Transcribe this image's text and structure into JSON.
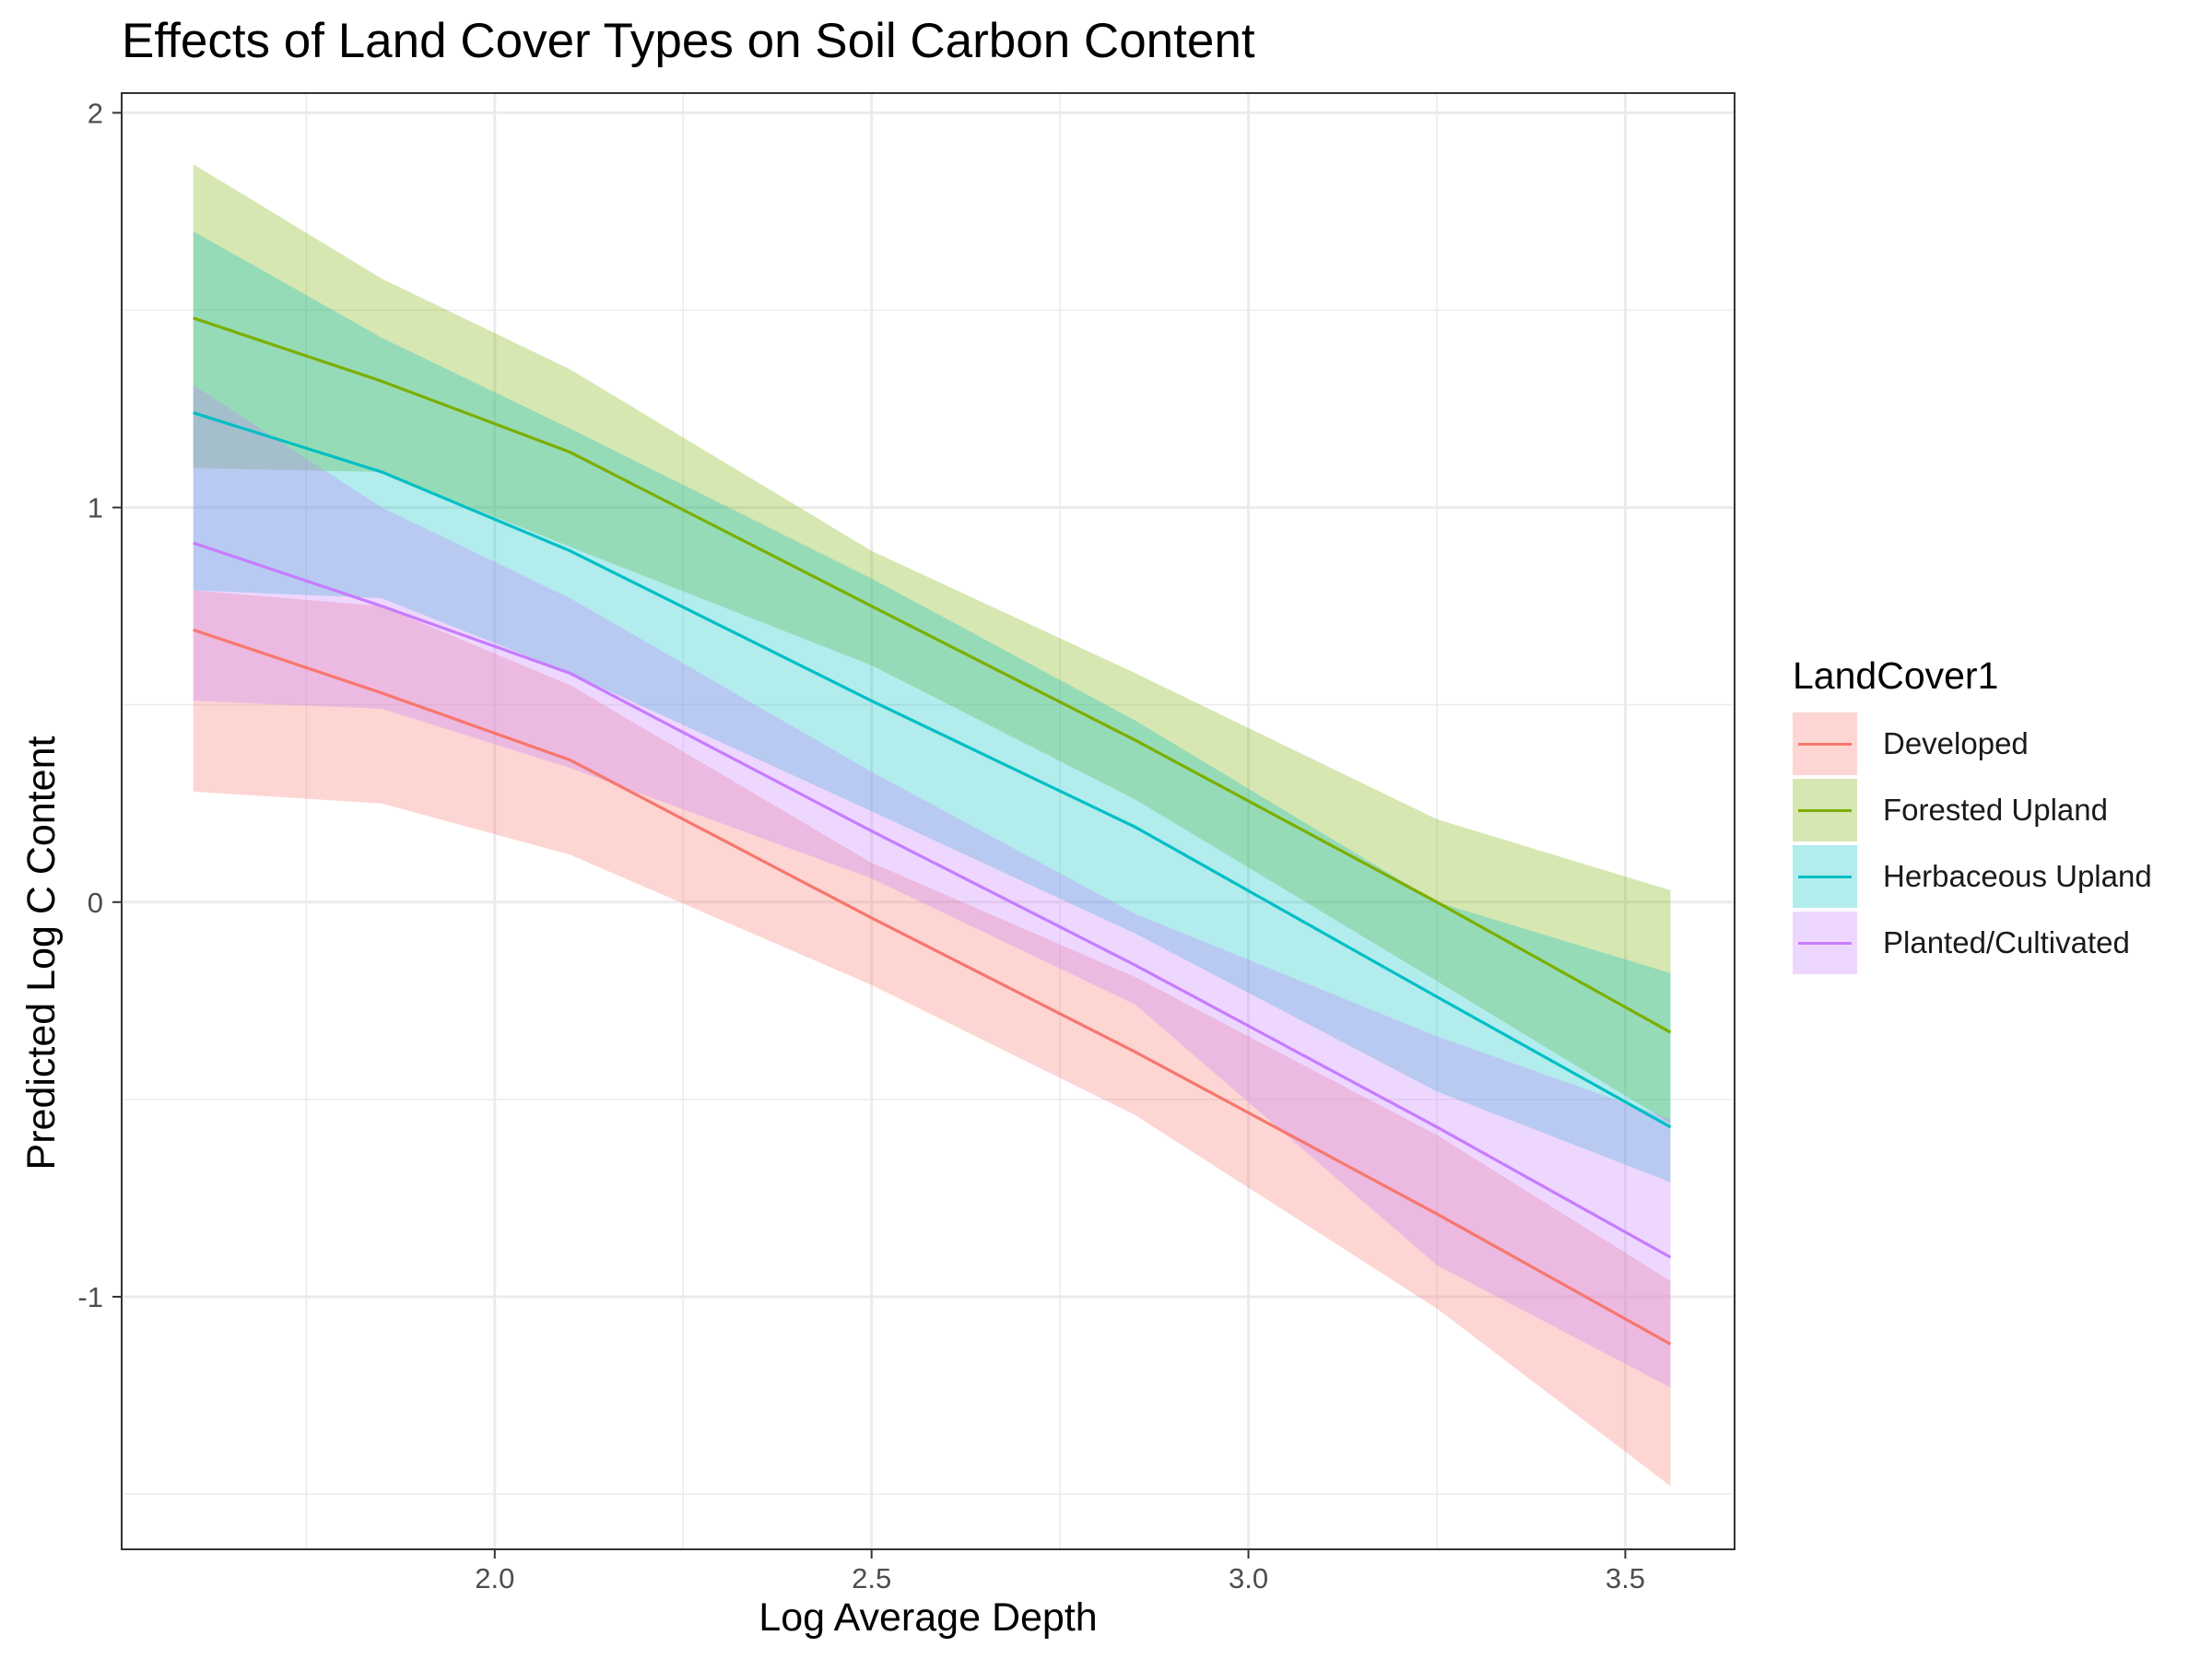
{
  "chart_data": {
    "type": "line",
    "title": "Effects of Land Cover Types on Soil Carbon Content",
    "xlabel": "Log Average Depth",
    "ylabel": "Predicted Log C Content",
    "xlim": [
      1.505,
      3.645
    ],
    "ylim": [
      -1.64,
      2.05
    ],
    "x_ticks": [
      2.0,
      2.5,
      3.0,
      3.5
    ],
    "x_tick_labels": [
      "2.0",
      "2.5",
      "3.0",
      "3.5"
    ],
    "y_ticks": [
      -1,
      0,
      1,
      2
    ],
    "y_tick_labels": [
      "-1",
      "0",
      "1",
      "2"
    ],
    "grid": true,
    "legend_title": "LandCover1",
    "legend_position": "right",
    "band_opacity": 0.3,
    "series": [
      {
        "name": "Developed",
        "color": "#F8766D",
        "x": [
          1.6,
          1.85,
          2.1,
          2.5,
          2.85,
          3.25,
          3.56
        ],
        "y": [
          0.69,
          0.53,
          0.36,
          -0.04,
          -0.38,
          -0.79,
          -1.12
        ],
        "lower": [
          0.28,
          0.25,
          0.12,
          -0.21,
          -0.54,
          -1.03,
          -1.48
        ],
        "upper": [
          0.79,
          0.75,
          0.55,
          0.1,
          -0.19,
          -0.59,
          -0.96
        ]
      },
      {
        "name": "Forested Upland",
        "color": "#7CAE00",
        "x": [
          1.6,
          1.85,
          2.1,
          2.5,
          2.85,
          3.25,
          3.56
        ],
        "y": [
          1.48,
          1.32,
          1.14,
          0.75,
          0.41,
          0.0,
          -0.33
        ],
        "lower": [
          1.1,
          1.09,
          0.9,
          0.6,
          0.26,
          -0.2,
          -0.56
        ],
        "upper": [
          1.87,
          1.58,
          1.35,
          0.89,
          0.58,
          0.21,
          0.03
        ]
      },
      {
        "name": "Herbaceous Upland",
        "color": "#00BFC4",
        "x": [
          1.6,
          1.85,
          2.1,
          2.5,
          2.85,
          3.25,
          3.56
        ],
        "y": [
          1.24,
          1.09,
          0.89,
          0.51,
          0.19,
          -0.24,
          -0.57
        ],
        "lower": [
          0.79,
          0.77,
          0.58,
          0.23,
          -0.08,
          -0.48,
          -0.71
        ],
        "upper": [
          1.7,
          1.43,
          1.2,
          0.82,
          0.46,
          0.0,
          -0.18
        ]
      },
      {
        "name": "Planted/Cultivated",
        "color": "#C77CFF",
        "x": [
          1.6,
          1.85,
          2.1,
          2.5,
          2.85,
          3.25,
          3.56
        ],
        "y": [
          0.91,
          0.75,
          0.58,
          0.18,
          -0.16,
          -0.57,
          -0.9
        ],
        "lower": [
          0.51,
          0.49,
          0.34,
          0.06,
          -0.26,
          -0.92,
          -1.23
        ],
        "upper": [
          1.31,
          1.0,
          0.77,
          0.33,
          -0.03,
          -0.34,
          -0.55
        ]
      }
    ]
  }
}
